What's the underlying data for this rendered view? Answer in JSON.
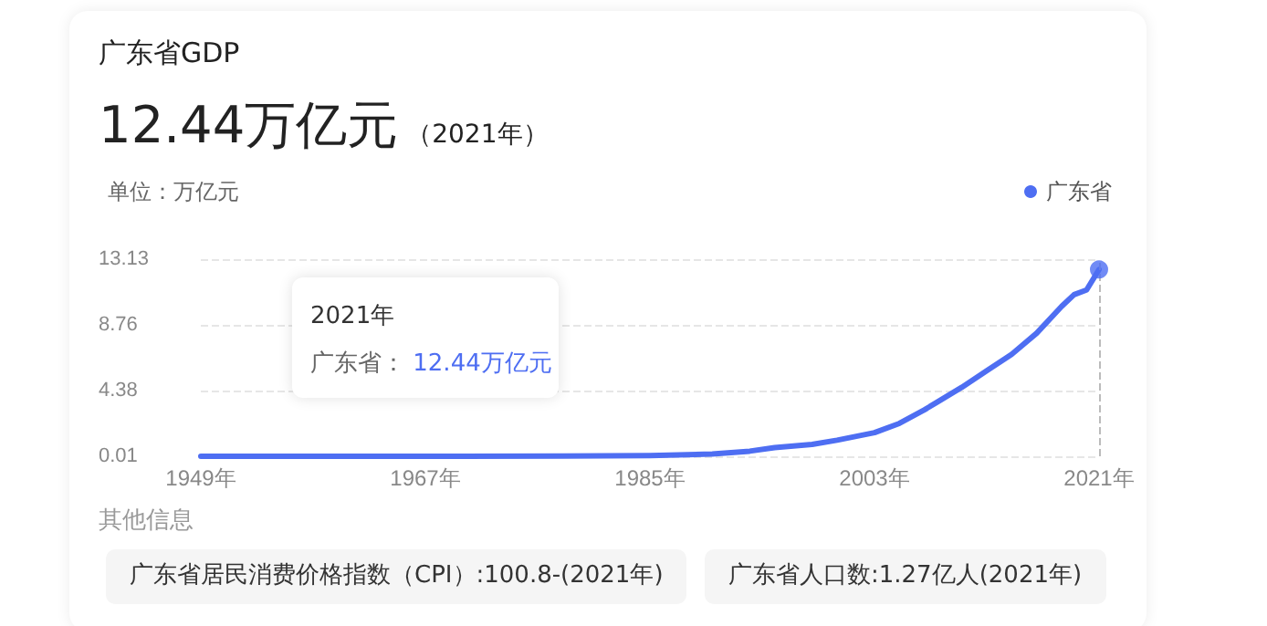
{
  "chart_data": {
    "type": "line",
    "title": "广东省GDP",
    "subtitle": "12.44万亿元 （2021年）",
    "ylabel": "单位：万亿元",
    "x": [
      1949,
      1960,
      1970,
      1978,
      1985,
      1990,
      1993,
      1995,
      1998,
      2000,
      2003,
      2005,
      2007,
      2008,
      2010,
      2012,
      2014,
      2016,
      2018,
      2019,
      2020,
      2021
    ],
    "series": [
      {
        "name": "广东省",
        "color": "#4e6ef2",
        "values": [
          0.01,
          0.01,
          0.01,
          0.02,
          0.06,
          0.16,
          0.35,
          0.59,
          0.8,
          1.08,
          1.58,
          2.2,
          3.1,
          3.6,
          4.6,
          5.7,
          6.8,
          8.2,
          9.99,
          10.77,
          11.08,
          12.44
        ]
      },
      {
        "type": "scatter",
        "marker": "circle",
        "color": "#4e6ef2",
        "x": [
          2021
        ],
        "values": [
          12.44
        ]
      }
    ],
    "xlim": [
      1949,
      2021
    ],
    "xticks": [
      {
        "value": 1949,
        "label": "1949年"
      },
      {
        "value": 1967,
        "label": "1967年"
      },
      {
        "value": 1985,
        "label": "1985年"
      },
      {
        "value": 2003,
        "label": "2003年"
      },
      {
        "value": 2021,
        "label": "2021年"
      }
    ],
    "ylim": [
      0.01,
      13.13
    ],
    "yticks": [
      0.01,
      4.38,
      8.76,
      13.13
    ],
    "grid": "y",
    "legend": "top right",
    "marker": "none",
    "line_style": "solid",
    "ref_lines": [
      {
        "axis": "x",
        "value": 2021,
        "line_style": "dashed",
        "color": "#bbbbbb"
      }
    ],
    "annotations": [
      "2021年",
      "广东省： 12.44万亿元",
      "其他信息",
      "广东省居民消费价格指数（CPI）:100.8-(2021年)",
      "广东省人口数:1.27亿人(2021年)"
    ]
  }
}
